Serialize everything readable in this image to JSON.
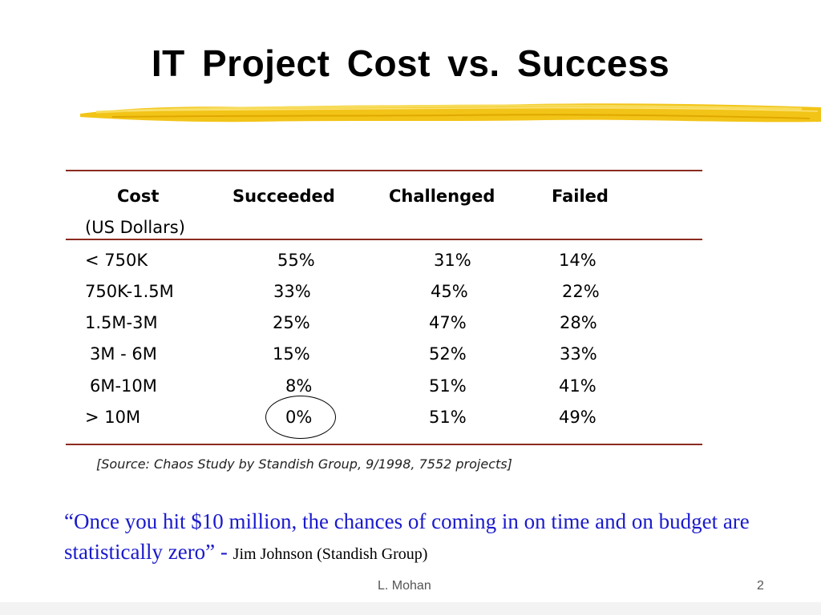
{
  "slide": {
    "title": "IT  Project  Cost vs. Success",
    "table": {
      "headers": [
        "Cost",
        "Succeeded",
        "Challenged",
        "Failed"
      ],
      "subheader": "(US Dollars)",
      "rows": [
        {
          "cost": "< 750K",
          "succeeded": "55%",
          "challenged": "31%",
          "failed": "14%"
        },
        {
          "cost": "750K-1.5M",
          "succeeded": "33%",
          "challenged": "45%",
          "failed": "22%"
        },
        {
          "cost": "1.5M-3M",
          "succeeded": "25%",
          "challenged": "47%",
          "failed": "28%"
        },
        {
          "cost": "3M - 6M",
          "succeeded": "15%",
          "challenged": "52%",
          "failed": "33%"
        },
        {
          "cost": "6M-10M",
          "succeeded": "8%",
          "challenged": "51%",
          "failed": "41%"
        },
        {
          "cost": "> 10M",
          "succeeded": "0%",
          "challenged": "51%",
          "failed": "49%"
        }
      ]
    },
    "source": "[Source: Chaos Study by Standish Group, 9/1998, 7552 projects]",
    "quote": {
      "text": "“Once you hit $10 million, the chances of coming in on time and on budget are statistically zero”",
      "dash": " - ",
      "attribution": "Jim Johnson (Standish Group)"
    },
    "footer": {
      "author": "L. Mohan",
      "page_number": "2"
    }
  },
  "colors": {
    "rule": "#8b2a1f",
    "quote": "#1a1acc",
    "brush": "#f2c418"
  }
}
